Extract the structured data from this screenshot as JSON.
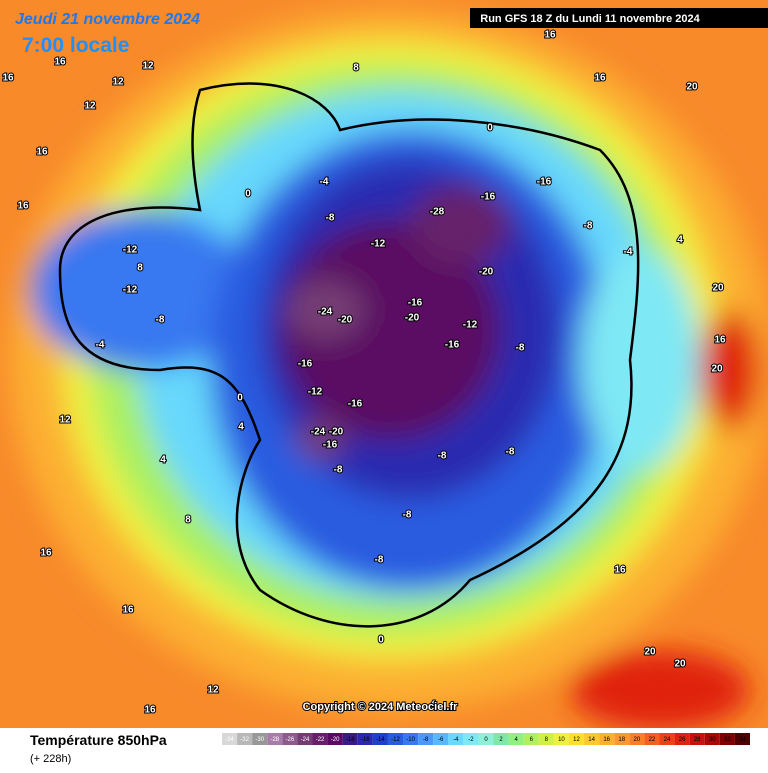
{
  "header": {
    "date": "Jeudi 21 novembre 2024",
    "time": "7:00 locale",
    "run": "Run GFS 18 Z du Lundi 11 novembre 2024"
  },
  "map": {
    "copyright": "Copyright © 2024 Meteociel.fr",
    "contour_labels": [
      16,
      16,
      12,
      12,
      16,
      12,
      16,
      8,
      0,
      -4,
      -8,
      -12,
      -28,
      -16,
      -16,
      -20,
      -16,
      -24,
      -20,
      -20,
      -12,
      -16,
      -16,
      -12,
      -16,
      -24,
      -20,
      -16,
      -8,
      -8,
      -8,
      -8,
      -8,
      0,
      4,
      -8,
      -8,
      -4,
      4,
      20,
      20,
      16,
      20,
      16,
      20,
      20,
      4,
      8,
      16,
      16,
      12,
      16,
      4,
      0,
      -4,
      -12,
      -8,
      -12,
      12,
      16,
      8,
      0,
      16
    ]
  },
  "legend": {
    "title": "Température 850hPa",
    "subtitle": "(+ 228h)",
    "ticks": [
      -34,
      -32,
      -30,
      -28,
      -26,
      -24,
      -22,
      -20,
      -18,
      -16,
      -14,
      -12,
      -10,
      -8,
      -6,
      -4,
      -2,
      0,
      2,
      4,
      6,
      8,
      10,
      12,
      14,
      16,
      18,
      20,
      22,
      24,
      26,
      28,
      30,
      32,
      34
    ],
    "colors": [
      "#d8d8d8",
      "#b8b8b8",
      "#989898",
      "#a87ca8",
      "#8c5a8c",
      "#743c74",
      "#66206a",
      "#5a0a62",
      "#3a1a8a",
      "#2a2ab0",
      "#2040c8",
      "#2a5ce0",
      "#3878f0",
      "#4a98f8",
      "#58b8fc",
      "#68d8fc",
      "#7ee8f4",
      "#8ef0d8",
      "#7ee8a8",
      "#90f080",
      "#b0f060",
      "#d0f048",
      "#f0f040",
      "#fce030",
      "#fcc830",
      "#fcb030",
      "#fc9830",
      "#f88028",
      "#f46020",
      "#ec4018",
      "#e02010",
      "#c81010",
      "#a80808",
      "#800000",
      "#500000"
    ]
  }
}
